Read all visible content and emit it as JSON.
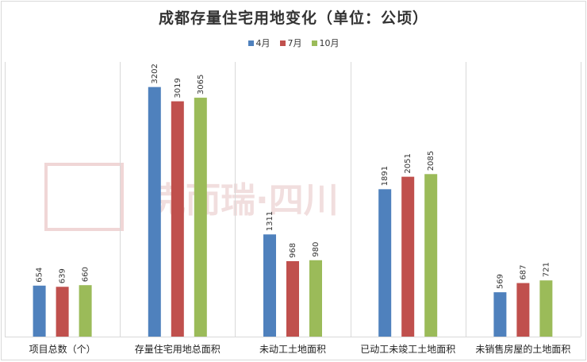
{
  "chart_data": {
    "type": "bar",
    "title": "成都存量住宅用地变化（单位：公顷）",
    "categories": [
      "项目总数（个）",
      "存量住宅用地总面积",
      "未动工土地面积",
      "已动工未竣工土地面积",
      "未销售房屋的土地面积"
    ],
    "series": [
      {
        "name": "4月",
        "color": "#4f81bd",
        "values": [
          654,
          3202,
          1311,
          1891,
          569
        ]
      },
      {
        "name": "7月",
        "color": "#c0504d",
        "values": [
          639,
          3019,
          968,
          2051,
          687
        ]
      },
      {
        "name": "10月",
        "color": "#9bbb59",
        "values": [
          660,
          3065,
          980,
          2085,
          721
        ]
      }
    ],
    "xlabel": "",
    "ylabel": "",
    "ylim": [
      0,
      3300
    ],
    "grid": false,
    "legend": "top"
  },
  "watermark": {
    "text": "克而瑞·四川"
  }
}
